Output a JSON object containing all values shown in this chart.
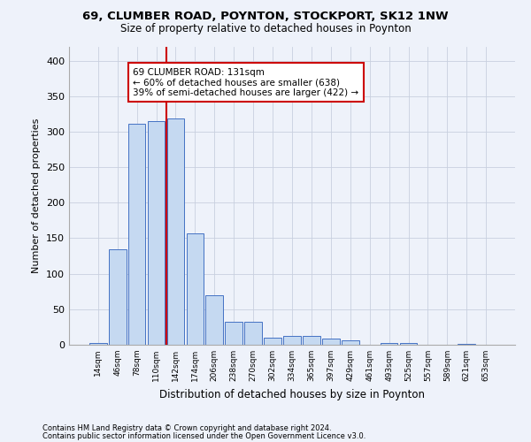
{
  "title1": "69, CLUMBER ROAD, POYNTON, STOCKPORT, SK12 1NW",
  "title2": "Size of property relative to detached houses in Poynton",
  "xlabel": "Distribution of detached houses by size in Poynton",
  "ylabel": "Number of detached properties",
  "footer1": "Contains HM Land Registry data © Crown copyright and database right 2024.",
  "footer2": "Contains public sector information licensed under the Open Government Licence v3.0.",
  "categories": [
    "14sqm",
    "46sqm",
    "78sqm",
    "110sqm",
    "142sqm",
    "174sqm",
    "206sqm",
    "238sqm",
    "270sqm",
    "302sqm",
    "334sqm",
    "365sqm",
    "397sqm",
    "429sqm",
    "461sqm",
    "493sqm",
    "525sqm",
    "557sqm",
    "589sqm",
    "621sqm",
    "653sqm"
  ],
  "values": [
    3,
    135,
    311,
    315,
    318,
    157,
    70,
    32,
    32,
    10,
    13,
    13,
    9,
    6,
    0,
    3,
    2,
    0,
    0,
    1,
    0
  ],
  "bar_color": "#c5d9f1",
  "bar_edge_color": "#4472c4",
  "vline_x": 3.5,
  "vline_color": "#cc0000",
  "annotation_text": "69 CLUMBER ROAD: 131sqm\n← 60% of detached houses are smaller (638)\n39% of semi-detached houses are larger (422) →",
  "annotation_box_color": "#ffffff",
  "annotation_box_edge": "#cc0000",
  "ylim": [
    0,
    420
  ],
  "yticks": [
    0,
    50,
    100,
    150,
    200,
    250,
    300,
    350,
    400
  ],
  "bg_color": "#eef2fa",
  "grid_color": "#c8d0df"
}
